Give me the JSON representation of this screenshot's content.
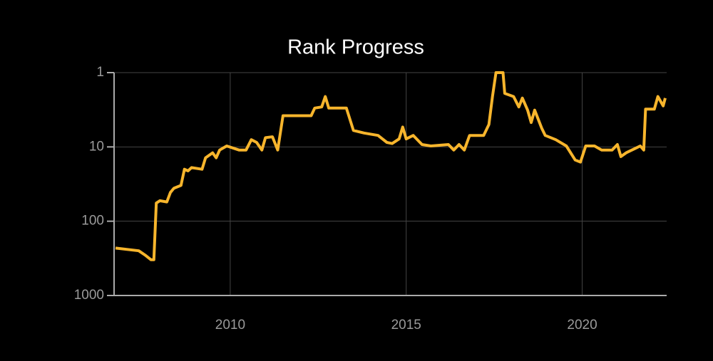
{
  "chart_data": {
    "type": "line",
    "title": "Rank Progress",
    "x": [
      2006.74,
      2007.4,
      2007.6,
      2007.75,
      2007.83,
      2007.9,
      2008.0,
      2008.2,
      2008.3,
      2008.4,
      2008.6,
      2008.7,
      2008.8,
      2008.9,
      2009.2,
      2009.3,
      2009.5,
      2009.6,
      2009.7,
      2009.9,
      2010.25,
      2010.45,
      2010.6,
      2010.75,
      2010.9,
      2011.0,
      2011.2,
      2011.35,
      2011.5,
      2012.3,
      2012.4,
      2012.6,
      2012.7,
      2012.8,
      2013.3,
      2013.5,
      2013.8,
      2014.2,
      2014.45,
      2014.6,
      2014.8,
      2014.9,
      2015.0,
      2015.2,
      2015.45,
      2015.7,
      2016.2,
      2016.35,
      2016.5,
      2016.65,
      2016.8,
      2017.2,
      2017.35,
      2017.45,
      2017.55,
      2017.75,
      2017.8,
      2018.05,
      2018.2,
      2018.3,
      2018.45,
      2018.55,
      2018.65,
      2018.85,
      2018.95,
      2019.25,
      2019.55,
      2019.8,
      2019.95,
      2020.1,
      2020.35,
      2020.55,
      2020.85,
      2021.0,
      2021.1,
      2021.25,
      2021.65,
      2021.75,
      2021.8,
      2022.05,
      2022.15,
      2022.3,
      2022.36
    ],
    "values": [
      230,
      250,
      290,
      330,
      330,
      57,
      53,
      55,
      41,
      36,
      33,
      20,
      21,
      19,
      20,
      14,
      12,
      14,
      11,
      9.7,
      11,
      11,
      8,
      8.7,
      11,
      7.5,
      7.3,
      11,
      3.8,
      3.8,
      3.0,
      2.9,
      2.1,
      3.0,
      3.0,
      6.0,
      6.5,
      7,
      8.7,
      9,
      7.8,
      5.4,
      7.8,
      7,
      9.3,
      9.7,
      9.3,
      11,
      9.3,
      11,
      7,
      7,
      5,
      2.1,
      1.0,
      1.0,
      1.9,
      2.1,
      2.9,
      2.2,
      3.2,
      4.7,
      3.2,
      5.6,
      7,
      8,
      9.7,
      15,
      16,
      9.7,
      9.7,
      11,
      11,
      9.3,
      13.5,
      12,
      9.7,
      11,
      3.1,
      3.1,
      2.1,
      2.8,
      2.2
    ],
    "color": "#f7b52c",
    "xlim": [
      2006.7,
      2022.4
    ],
    "xticks": [
      2010,
      2015,
      2020
    ],
    "ylim": [
      1000,
      1
    ],
    "yticks": [
      1,
      10,
      100,
      1000
    ],
    "log": true,
    "grid": true
  }
}
